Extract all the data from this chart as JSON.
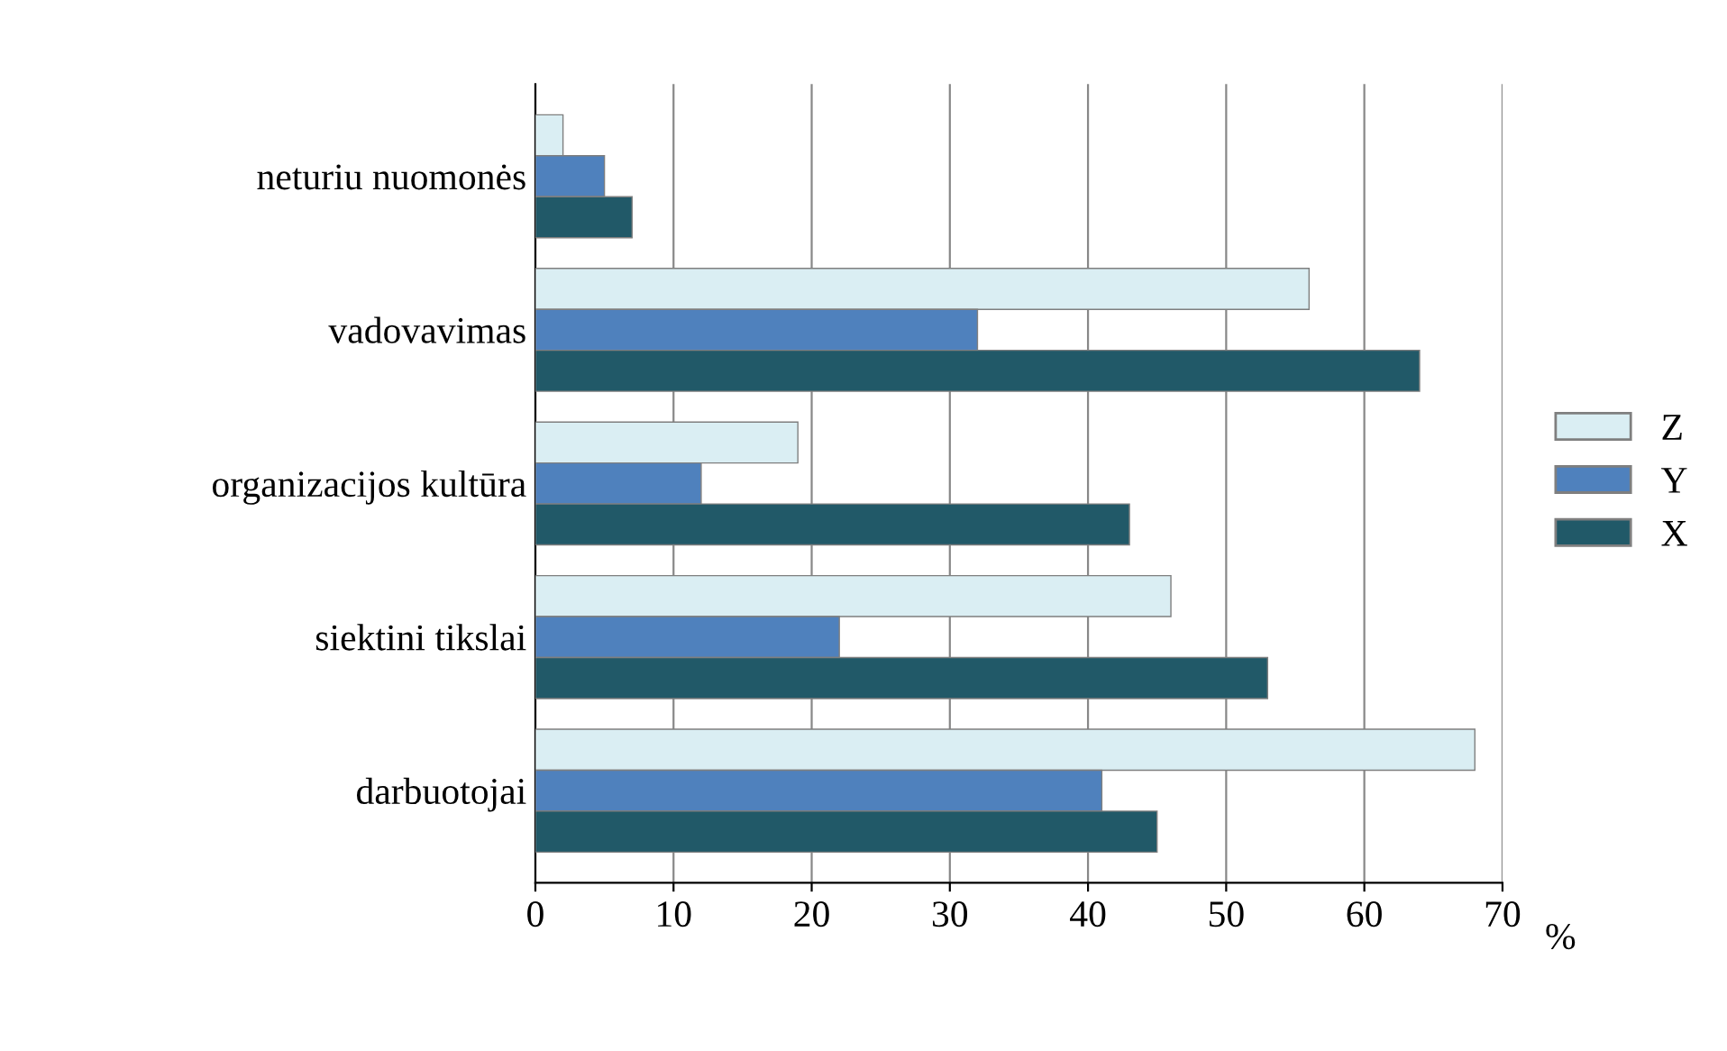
{
  "chart_data": {
    "type": "bar",
    "orientation": "horizontal",
    "xlabel": "%",
    "categories": [
      "neturiu nuomonės",
      "vadovavimas",
      "organizacijos kultūra",
      "siektini tikslai",
      "darbuotojai"
    ],
    "series": [
      {
        "name": "Z",
        "color": "#daeef3",
        "values": [
          2,
          56,
          19,
          46,
          68
        ]
      },
      {
        "name": "Y",
        "color": "#4f81bd",
        "values": [
          5,
          32,
          12,
          22,
          41
        ]
      },
      {
        "name": "X",
        "color": "#215968",
        "values": [
          7,
          64,
          43,
          53,
          45
        ]
      }
    ],
    "xlim": [
      0,
      70
    ],
    "xticks": [
      0,
      10,
      20,
      30,
      40,
      50,
      60,
      70
    ],
    "grid": "x",
    "legend": "right"
  }
}
